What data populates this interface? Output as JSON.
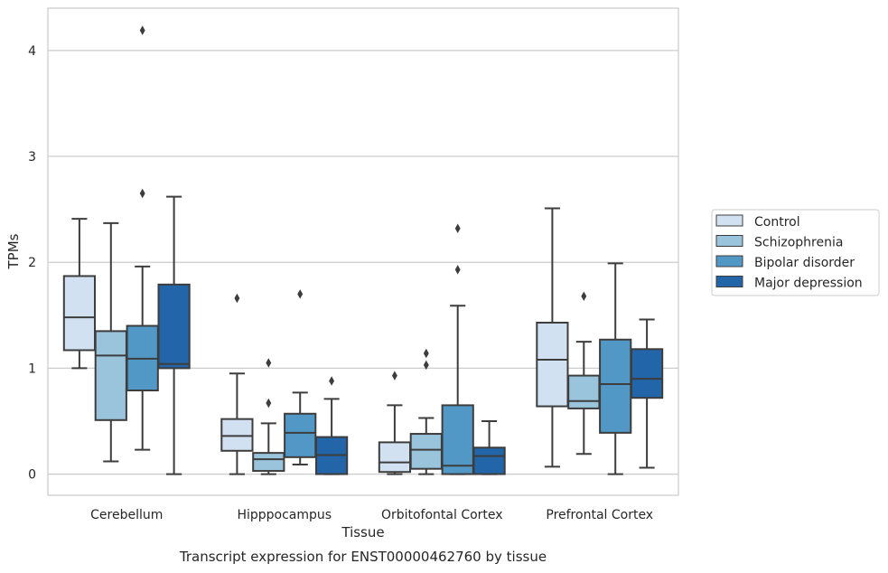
{
  "chart_data": {
    "type": "boxplot",
    "title": "",
    "caption": "Transcript expression for ENST00000462760 by tissue",
    "xlabel": "Tissue",
    "ylabel": "TPMs",
    "ylim": [
      -0.2,
      4.4
    ],
    "yticks": [
      0,
      1,
      2,
      3,
      4
    ],
    "grid": "horizontal",
    "legend_position": "right",
    "categories": [
      "Cerebellum",
      "Hipppocampus",
      "Orbitofontal Cortex",
      "Prefrontal Cortex"
    ],
    "series": [
      {
        "name": "Control",
        "color": "#d2e1f1",
        "boxes": [
          {
            "whislo": 1.0,
            "q1": 1.17,
            "med": 1.48,
            "q3": 1.87,
            "whishi": 2.41,
            "fliers": []
          },
          {
            "whislo": 0.0,
            "q1": 0.22,
            "med": 0.36,
            "q3": 0.52,
            "whishi": 0.95,
            "fliers": [
              1.66
            ]
          },
          {
            "whislo": 0.0,
            "q1": 0.02,
            "med": 0.11,
            "q3": 0.3,
            "whishi": 0.65,
            "fliers": [
              0.93
            ]
          },
          {
            "whislo": 0.07,
            "q1": 0.64,
            "med": 1.08,
            "q3": 1.43,
            "whishi": 2.51,
            "fliers": []
          }
        ]
      },
      {
        "name": "Schizophrenia",
        "color": "#9ac3dc",
        "boxes": [
          {
            "whislo": 0.12,
            "q1": 0.51,
            "med": 1.12,
            "q3": 1.35,
            "whishi": 2.37,
            "fliers": []
          },
          {
            "whislo": 0.0,
            "q1": 0.03,
            "med": 0.14,
            "q3": 0.2,
            "whishi": 0.48,
            "fliers": [
              0.67,
              1.05
            ]
          },
          {
            "whislo": 0.0,
            "q1": 0.05,
            "med": 0.23,
            "q3": 0.38,
            "whishi": 0.53,
            "fliers": [
              1.03,
              1.14
            ]
          },
          {
            "whislo": 0.19,
            "q1": 0.62,
            "med": 0.69,
            "q3": 0.93,
            "whishi": 1.25,
            "fliers": [
              1.68
            ]
          }
        ]
      },
      {
        "name": "Bipolar disorder",
        "color": "#5298c7",
        "boxes": [
          {
            "whislo": 0.23,
            "q1": 0.79,
            "med": 1.09,
            "q3": 1.4,
            "whishi": 1.96,
            "fliers": [
              2.65,
              4.19
            ]
          },
          {
            "whislo": 0.09,
            "q1": 0.16,
            "med": 0.39,
            "q3": 0.57,
            "whishi": 0.77,
            "fliers": [
              1.7
            ]
          },
          {
            "whislo": 0.0,
            "q1": 0.0,
            "med": 0.08,
            "q3": 0.65,
            "whishi": 1.59,
            "fliers": [
              1.93,
              2.32
            ]
          },
          {
            "whislo": 0.0,
            "q1": 0.39,
            "med": 0.85,
            "q3": 1.27,
            "whishi": 1.99,
            "fliers": []
          }
        ]
      },
      {
        "name": "Major depression",
        "color": "#2265a8",
        "boxes": [
          {
            "whislo": 0.0,
            "q1": 1.0,
            "med": 1.04,
            "q3": 1.79,
            "whishi": 2.62,
            "fliers": []
          },
          {
            "whislo": 0.0,
            "q1": 0.0,
            "med": 0.18,
            "q3": 0.35,
            "whishi": 0.71,
            "fliers": [
              0.88
            ]
          },
          {
            "whislo": 0.0,
            "q1": 0.0,
            "med": 0.17,
            "q3": 0.25,
            "whishi": 0.5,
            "fliers": []
          },
          {
            "whislo": 0.06,
            "q1": 0.72,
            "med": 0.9,
            "q3": 1.18,
            "whishi": 1.46,
            "fliers": []
          }
        ]
      }
    ]
  }
}
